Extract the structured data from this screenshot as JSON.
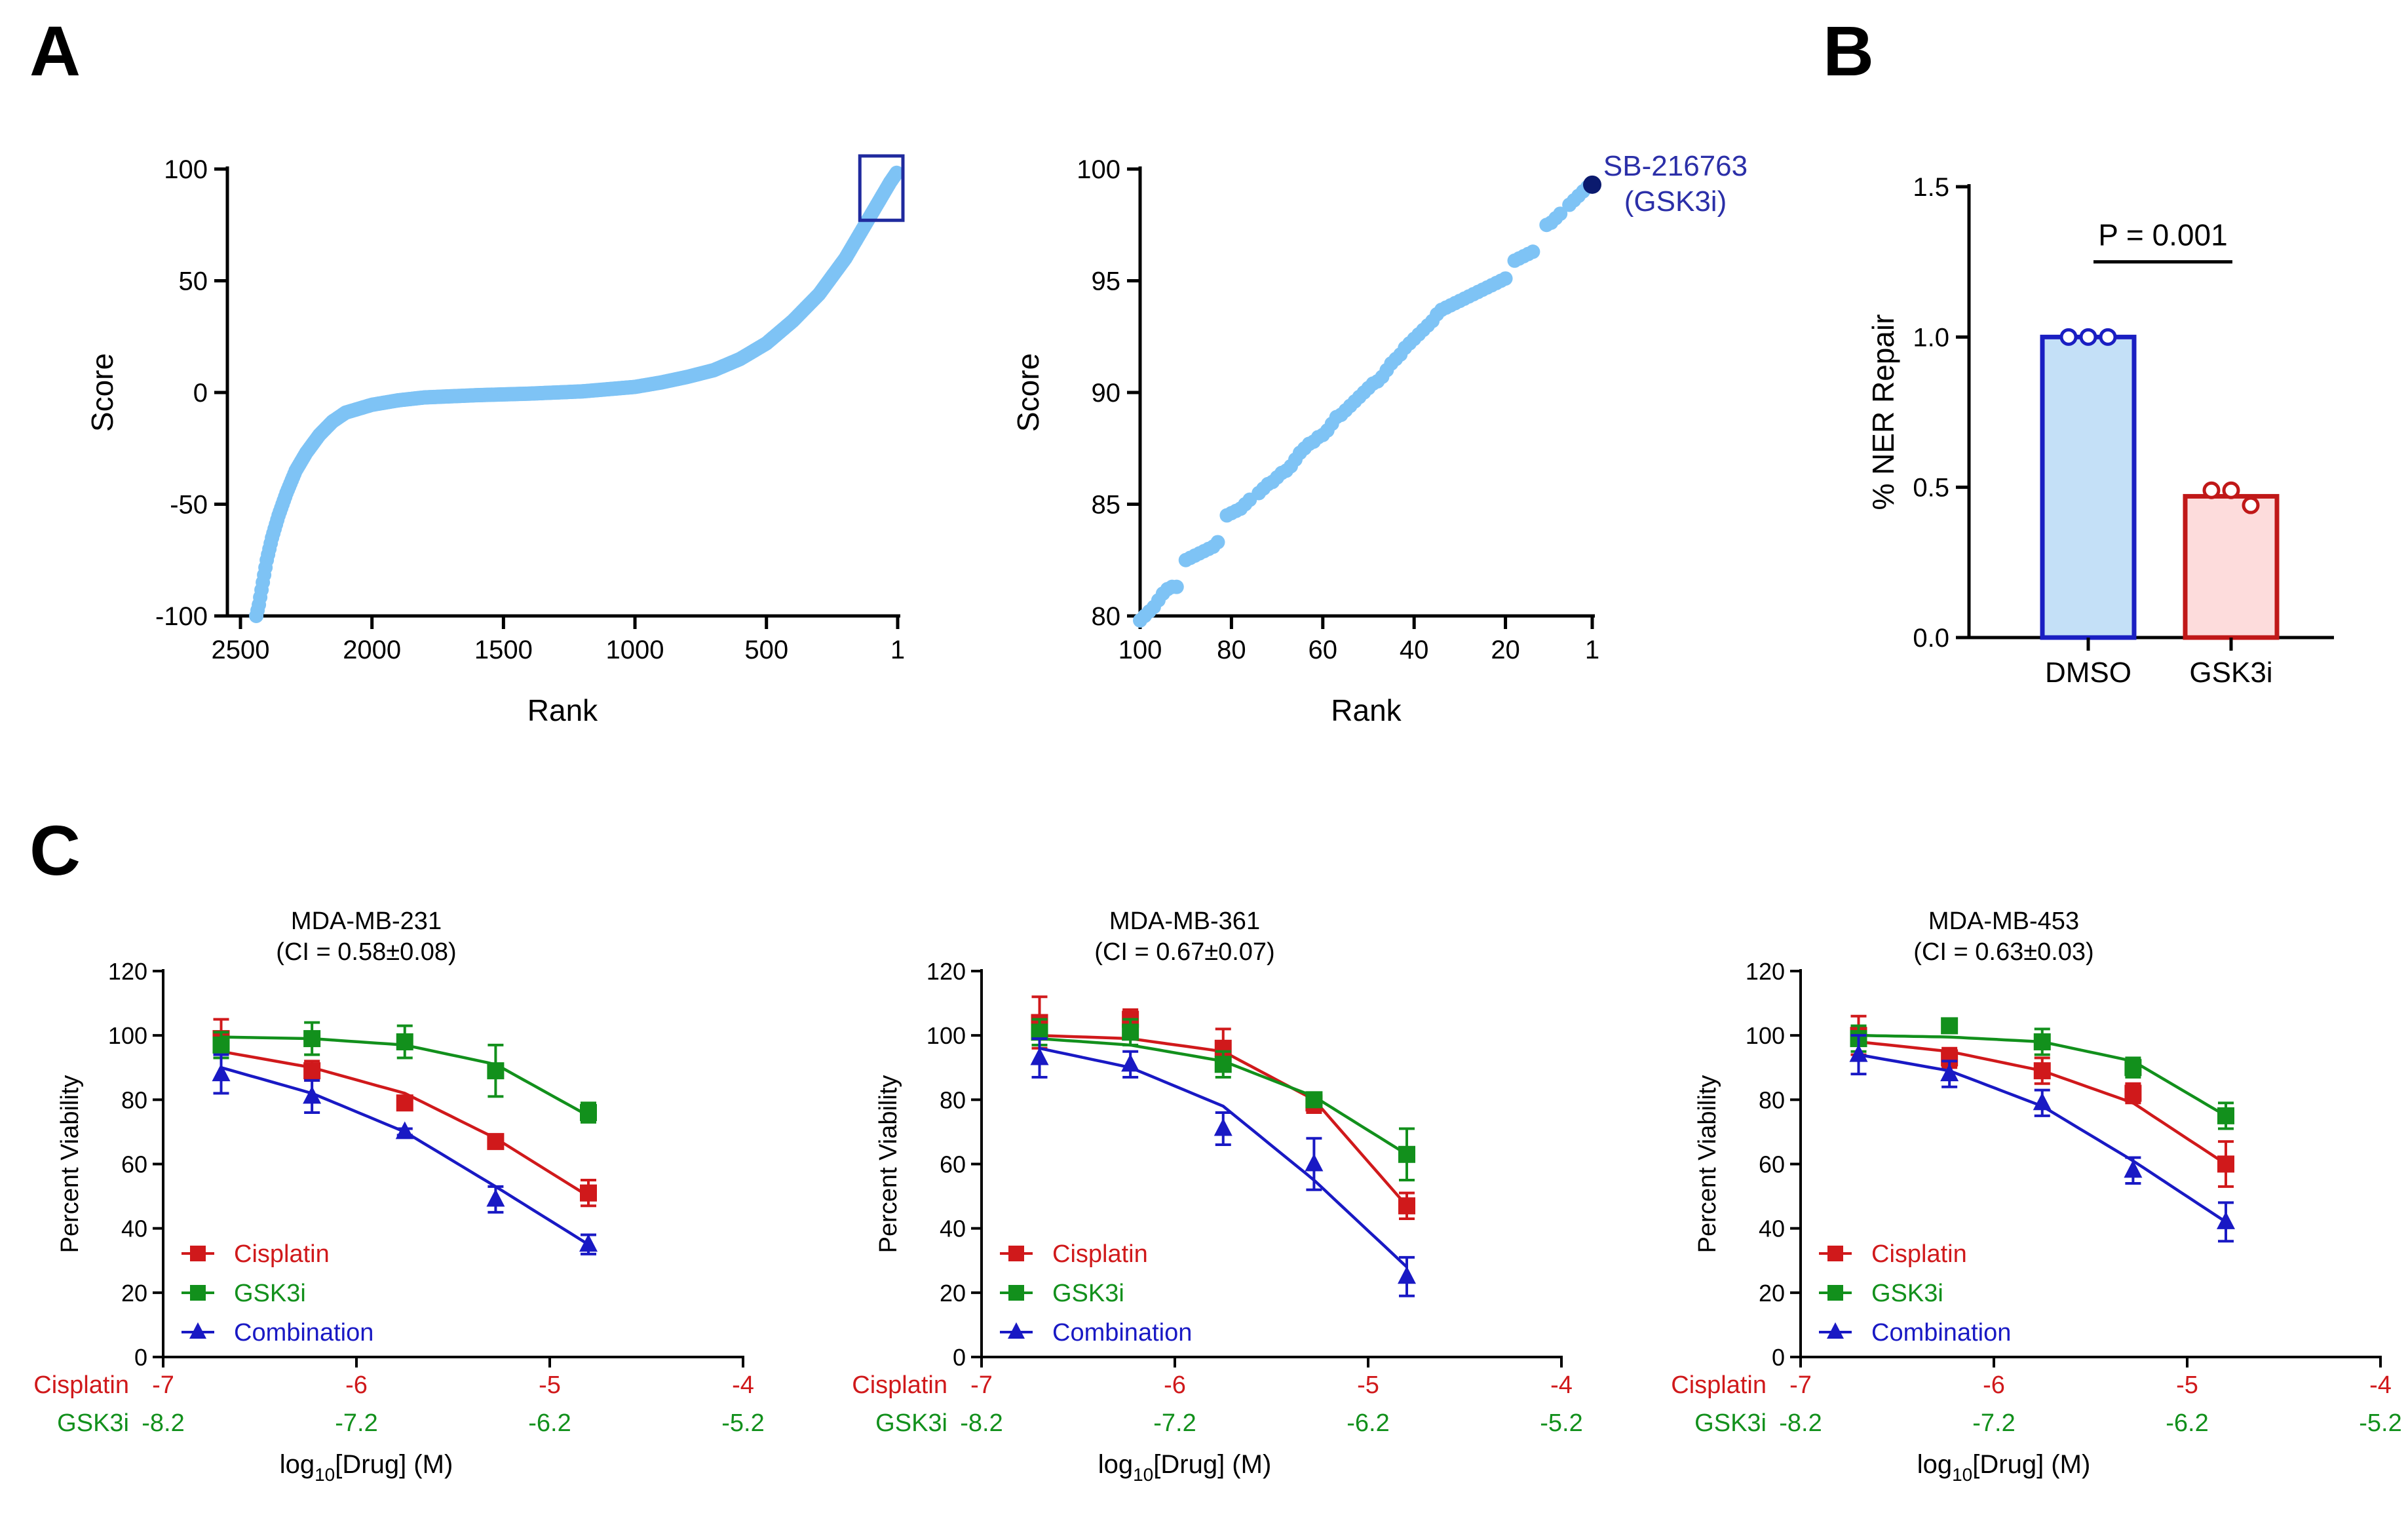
{
  "figure": {
    "panel_labels": [
      "A",
      "B",
      "C"
    ]
  },
  "chart_data": [
    {
      "id": "A-full",
      "type": "scatter",
      "title": "",
      "xlabel": "Rank",
      "ylabel": "Score",
      "x_reversed": true,
      "xlim": [
        2500,
        1
      ],
      "ylim": [
        -100,
        100
      ],
      "xticks": [
        2500,
        2000,
        1500,
        1000,
        500,
        1
      ],
      "yticks": [
        -100,
        -50,
        0,
        50,
        100
      ],
      "point_color": "#7EC3F5",
      "box_color": "#1F2A9E",
      "highlight_box": {
        "x": [
          1,
          100
        ],
        "y": [
          80,
          100
        ]
      },
      "curve": [
        {
          "rank": 2440,
          "score": -100
        },
        {
          "rank": 2430,
          "score": -95
        },
        {
          "rank": 2415,
          "score": -85
        },
        {
          "rank": 2400,
          "score": -75
        },
        {
          "rank": 2380,
          "score": -65
        },
        {
          "rank": 2355,
          "score": -55
        },
        {
          "rank": 2325,
          "score": -45
        },
        {
          "rank": 2290,
          "score": -35
        },
        {
          "rank": 2250,
          "score": -27
        },
        {
          "rank": 2200,
          "score": -19
        },
        {
          "rank": 2150,
          "score": -13
        },
        {
          "rank": 2100,
          "score": -9
        },
        {
          "rank": 2000,
          "score": -5.5
        },
        {
          "rank": 1900,
          "score": -3.5
        },
        {
          "rank": 1800,
          "score": -2.2
        },
        {
          "rank": 1600,
          "score": -1.2
        },
        {
          "rank": 1400,
          "score": -0.5
        },
        {
          "rank": 1200,
          "score": 0.5
        },
        {
          "rank": 1000,
          "score": 2.5
        },
        {
          "rank": 900,
          "score": 4.5
        },
        {
          "rank": 800,
          "score": 7
        },
        {
          "rank": 700,
          "score": 10
        },
        {
          "rank": 600,
          "score": 15
        },
        {
          "rank": 500,
          "score": 22
        },
        {
          "rank": 400,
          "score": 32
        },
        {
          "rank": 300,
          "score": 44
        },
        {
          "rank": 200,
          "score": 60
        },
        {
          "rank": 150,
          "score": 70
        },
        {
          "rank": 100,
          "score": 80
        },
        {
          "rank": 60,
          "score": 88
        },
        {
          "rank": 30,
          "score": 94
        },
        {
          "rank": 1,
          "score": 99
        }
      ]
    },
    {
      "id": "A-zoom",
      "type": "scatter",
      "title": "",
      "xlabel": "Rank",
      "ylabel": "Score",
      "x_reversed": true,
      "xlim": [
        100,
        1
      ],
      "ylim": [
        80,
        100
      ],
      "xticks": [
        100,
        80,
        60,
        40,
        20,
        1
      ],
      "yticks": [
        80,
        85,
        90,
        95,
        100
      ],
      "point_color": "#7EC3F5",
      "highlight_color": "#0B1A6E",
      "annotation": {
        "line1": "SB-216763",
        "line2": "(GSK3i)",
        "rank": 1,
        "score": 99.3,
        "color": "#2B2FA8"
      },
      "points": [
        [
          100,
          79.8
        ],
        [
          99,
          80.0
        ],
        [
          98,
          80.2
        ],
        [
          97,
          80.4
        ],
        [
          96,
          80.7
        ],
        [
          95,
          81.0
        ],
        [
          94,
          81.2
        ],
        [
          93,
          81.3
        ],
        [
          92,
          81.3
        ],
        [
          90,
          82.5
        ],
        [
          89,
          82.6
        ],
        [
          88,
          82.7
        ],
        [
          87,
          82.8
        ],
        [
          86,
          82.9
        ],
        [
          85,
          83.0
        ],
        [
          84,
          83.1
        ],
        [
          83,
          83.3
        ],
        [
          81,
          84.5
        ],
        [
          80,
          84.6
        ],
        [
          79,
          84.7
        ],
        [
          78,
          84.8
        ],
        [
          77,
          85.0
        ],
        [
          76,
          85.2
        ],
        [
          74,
          85.5
        ],
        [
          73,
          85.7
        ],
        [
          72,
          85.9
        ],
        [
          71,
          86.0
        ],
        [
          70,
          86.2
        ],
        [
          69,
          86.4
        ],
        [
          68,
          86.5
        ],
        [
          67,
          86.7
        ],
        [
          66,
          87.0
        ],
        [
          65,
          87.3
        ],
        [
          64,
          87.5
        ],
        [
          63,
          87.7
        ],
        [
          62,
          87.8
        ],
        [
          61,
          88.0
        ],
        [
          60,
          88.1
        ],
        [
          59,
          88.3
        ],
        [
          58,
          88.6
        ],
        [
          57,
          88.9
        ],
        [
          56,
          89.0
        ],
        [
          55,
          89.2
        ],
        [
          54,
          89.4
        ],
        [
          53,
          89.6
        ],
        [
          52,
          89.8
        ],
        [
          51,
          90.0
        ],
        [
          50,
          90.2
        ],
        [
          49,
          90.4
        ],
        [
          48,
          90.5
        ],
        [
          47,
          90.7
        ],
        [
          46,
          91.0
        ],
        [
          45,
          91.3
        ],
        [
          44,
          91.5
        ],
        [
          43,
          91.7
        ],
        [
          42,
          92.0
        ],
        [
          41,
          92.2
        ],
        [
          40,
          92.4
        ],
        [
          39,
          92.6
        ],
        [
          38,
          92.8
        ],
        [
          37,
          93.0
        ],
        [
          36,
          93.2
        ],
        [
          35,
          93.5
        ],
        [
          34,
          93.7
        ],
        [
          33,
          93.8
        ],
        [
          32,
          93.9
        ],
        [
          31,
          94.0
        ],
        [
          30,
          94.1
        ],
        [
          29,
          94.2
        ],
        [
          28,
          94.3
        ],
        [
          27,
          94.4
        ],
        [
          26,
          94.5
        ],
        [
          25,
          94.6
        ],
        [
          24,
          94.7
        ],
        [
          23,
          94.8
        ],
        [
          22,
          94.9
        ],
        [
          21,
          95.0
        ],
        [
          20,
          95.1
        ],
        [
          18,
          95.9
        ],
        [
          17,
          96.0
        ],
        [
          16,
          96.1
        ],
        [
          15,
          96.2
        ],
        [
          14,
          96.3
        ],
        [
          11,
          97.5
        ],
        [
          10,
          97.6
        ],
        [
          9,
          97.8
        ],
        [
          8,
          98.0
        ],
        [
          6,
          98.4
        ],
        [
          5,
          98.6
        ],
        [
          4,
          98.8
        ],
        [
          3,
          99.0
        ],
        [
          2,
          99.2
        ]
      ]
    },
    {
      "id": "B",
      "type": "bar",
      "title": "",
      "xlabel": "",
      "ylabel": "% NER Repair",
      "ylim": [
        0,
        1.5
      ],
      "yticks": [
        "0.0",
        "0.5",
        "1.0",
        "1.5"
      ],
      "categories": [
        "DMSO",
        "GSK3i"
      ],
      "values": [
        1.0,
        0.47
      ],
      "replicates": [
        [
          1.0,
          1.0,
          1.0
        ],
        [
          0.49,
          0.49,
          0.44
        ]
      ],
      "fill_colors": [
        "#C4E0F7",
        "#FDDCDC"
      ],
      "edge_colors": [
        "#1A1FC2",
        "#C01818"
      ],
      "significance": "P = 0.001"
    },
    {
      "id": "C-231",
      "type": "line",
      "title": "MDA-MB-231",
      "subtitle": "(CI = 0.58±0.08)",
      "xlabel": "log10[Drug] (M)",
      "ylabel": "Percent Viability",
      "xlim": [
        -7,
        -4
      ],
      "ylim": [
        0,
        120
      ],
      "xticks_cisplatin": [
        "-7",
        "-6",
        "-5",
        "-4"
      ],
      "xticks_gsk3i": [
        "-8.2",
        "-7.2",
        "-6.2",
        "-5.2"
      ],
      "yticks": [
        "0",
        "20",
        "40",
        "60",
        "80",
        "100",
        "120"
      ],
      "x": [
        -6.7,
        -6.23,
        -5.75,
        -5.28,
        -4.8
      ],
      "series": [
        {
          "name": "Cisplatin",
          "color": "#D0191B",
          "marker": "square",
          "values": [
            99,
            89,
            79,
            67,
            51
          ],
          "errors": [
            6,
            3,
            2,
            2,
            4
          ],
          "fit": [
            95,
            90,
            82,
            68,
            50
          ]
        },
        {
          "name": "GSK3i",
          "color": "#12901C",
          "marker": "square",
          "values": [
            97,
            99,
            98,
            89,
            76
          ],
          "errors": [
            4,
            5,
            5,
            8,
            3
          ],
          "fit": [
            99.5,
            99,
            97,
            91,
            75
          ]
        },
        {
          "name": "Combination",
          "color": "#1919C4",
          "marker": "triangle",
          "values": [
            88,
            81,
            70,
            49,
            35
          ],
          "errors": [
            6,
            5,
            1,
            4,
            3
          ],
          "fit": [
            90,
            82,
            70,
            53,
            35
          ]
        }
      ],
      "axis_label_cisplatin": "Cisplatin",
      "axis_label_gsk3i": "GSK3i"
    },
    {
      "id": "C-361",
      "type": "line",
      "title": "MDA-MB-361",
      "subtitle": "(CI = 0.67±0.07)",
      "xlabel": "log10[Drug] (M)",
      "ylabel": "Percent Viability",
      "xlim": [
        -7,
        -4
      ],
      "ylim": [
        0,
        120
      ],
      "xticks_cisplatin": [
        "-7",
        "-6",
        "-5",
        "-4"
      ],
      "xticks_gsk3i": [
        "-8.2",
        "-7.2",
        "-6.2",
        "-5.2"
      ],
      "yticks": [
        "0",
        "20",
        "40",
        "60",
        "80",
        "100",
        "120"
      ],
      "x": [
        -6.7,
        -6.23,
        -5.75,
        -5.28,
        -4.8
      ],
      "series": [
        {
          "name": "Cisplatin",
          "color": "#D0191B",
          "marker": "square",
          "values": [
            104,
            105,
            96,
            79,
            47
          ],
          "errors": [
            8,
            3,
            6,
            3,
            4
          ],
          "fit": [
            100,
            99,
            95,
            80,
            47
          ]
        },
        {
          "name": "GSK3i",
          "color": "#12901C",
          "marker": "square",
          "values": [
            101,
            101,
            91,
            80,
            63
          ],
          "errors": [
            4,
            4,
            4,
            2,
            8
          ],
          "fit": [
            99,
            97,
            92,
            81,
            63
          ]
        },
        {
          "name": "Combination",
          "color": "#1919C4",
          "marker": "triangle",
          "values": [
            93,
            91,
            71,
            60,
            25
          ],
          "errors": [
            6,
            4,
            5,
            8,
            6
          ],
          "fit": [
            96,
            90,
            78,
            55,
            28
          ]
        }
      ],
      "axis_label_cisplatin": "Cisplatin",
      "axis_label_gsk3i": "GSK3i"
    },
    {
      "id": "C-453",
      "type": "line",
      "title": "MDA-MB-453",
      "subtitle": "(CI = 0.63±0.03)",
      "xlabel": "log10[Drug] (M)",
      "ylabel": "Percent Viability",
      "xlim": [
        -7,
        -4
      ],
      "ylim": [
        0,
        120
      ],
      "xticks_cisplatin": [
        "-7",
        "-6",
        "-5",
        "-4"
      ],
      "xticks_gsk3i": [
        "-8.2",
        "-7.2",
        "-6.2",
        "-5.2"
      ],
      "yticks": [
        "0",
        "20",
        "40",
        "60",
        "80",
        "100",
        "120"
      ],
      "x": [
        -6.7,
        -6.23,
        -5.75,
        -5.28,
        -4.8
      ],
      "series": [
        {
          "name": "Cisplatin",
          "color": "#D0191B",
          "marker": "square",
          "values": [
            100,
            93,
            89,
            82,
            60
          ],
          "errors": [
            6,
            3,
            4,
            3,
            7
          ],
          "fit": [
            98,
            95,
            89,
            79,
            60
          ]
        },
        {
          "name": "GSK3i",
          "color": "#12901C",
          "marker": "square",
          "values": [
            99,
            103,
            98,
            90,
            75
          ],
          "errors": [
            4,
            2,
            4,
            3,
            4
          ],
          "fit": [
            100,
            99.5,
            98,
            92,
            75
          ]
        },
        {
          "name": "Combination",
          "color": "#1919C4",
          "marker": "triangle",
          "values": [
            94,
            88,
            79,
            58,
            42
          ],
          "errors": [
            6,
            4,
            4,
            4,
            6
          ],
          "fit": [
            94,
            89,
            78,
            61,
            42
          ]
        }
      ],
      "axis_label_cisplatin": "Cisplatin",
      "axis_label_gsk3i": "GSK3i"
    }
  ]
}
